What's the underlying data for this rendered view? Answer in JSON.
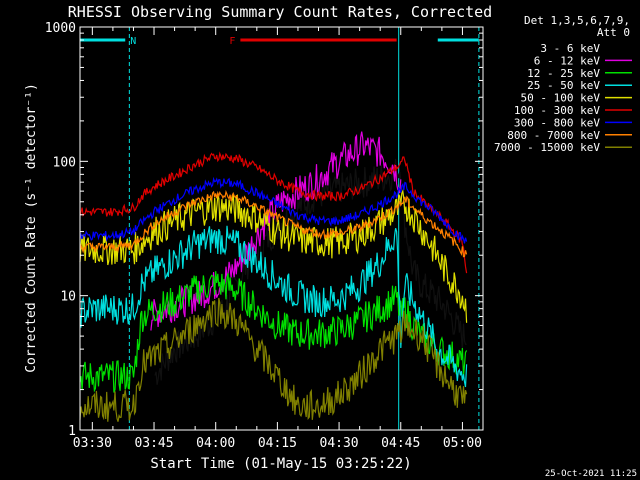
{
  "chart_data": {
    "type": "line",
    "title": "RHESSI Observing Summary Count Rates, Corrected",
    "xlabel": "Start Time (01-May-15 03:25:22)",
    "ylabel": "Corrected Count Rate (s⁻¹ detector⁻¹)",
    "xlim": [
      27,
      125
    ],
    "ylim": [
      1,
      1000
    ],
    "yscale": "log",
    "x_ticks": [
      {
        "value": 30,
        "label": "03:30"
      },
      {
        "value": 45,
        "label": "03:45"
      },
      {
        "value": 60,
        "label": "04:00"
      },
      {
        "value": 75,
        "label": "04:15"
      },
      {
        "value": 90,
        "label": "04:30"
      },
      {
        "value": 105,
        "label": "04:45"
      },
      {
        "value": 120,
        "label": "05:00"
      }
    ],
    "y_ticks": [
      {
        "value": 1,
        "label": "1"
      },
      {
        "value": 10,
        "label": "10"
      },
      {
        "value": 100,
        "label": "100"
      },
      {
        "value": 1000,
        "label": "1000"
      }
    ],
    "legend_header": [
      "Det 1,3,5,6,7,9,",
      "Att 0"
    ],
    "series": [
      {
        "name": "3 - 6 keV",
        "color": "#000000",
        "x": [
          27,
          40,
          45,
          50,
          55,
          58,
          62,
          65,
          68,
          72,
          76,
          80,
          84,
          88,
          92,
          96,
          100,
          103,
          105,
          106,
          108,
          110,
          113,
          116,
          120,
          121
        ],
        "y": [
          null,
          null,
          2.5,
          4,
          5,
          6,
          8,
          12,
          18,
          25,
          35,
          45,
          55,
          60,
          65,
          70,
          75,
          80,
          90,
          35,
          15,
          12,
          10,
          8,
          5,
          5
        ]
      },
      {
        "name": "6 - 12 keV",
        "color": "#e000e0",
        "x": [
          27,
          40,
          44,
          48,
          52,
          56,
          60,
          64,
          68,
          72,
          76,
          80,
          84,
          88,
          92,
          96,
          100,
          103,
          105,
          106,
          108,
          110,
          114,
          118,
          121
        ],
        "y": [
          null,
          null,
          7,
          8,
          9,
          10,
          12,
          15,
          22,
          35,
          50,
          60,
          70,
          90,
          110,
          130,
          115,
          95,
          70,
          null,
          null,
          null,
          null,
          null,
          null
        ]
      },
      {
        "name": "12 - 25 keV",
        "color": "#00e000",
        "x": [
          27,
          30,
          40,
          42,
          45,
          50,
          55,
          60,
          65,
          70,
          75,
          80,
          85,
          90,
          95,
          100,
          104,
          105,
          106,
          108,
          110,
          114,
          118,
          121
        ],
        "y": [
          2.5,
          2.5,
          2.5,
          7,
          8,
          9,
          11,
          12.5,
          11,
          8,
          6,
          5.2,
          5.2,
          5.5,
          6.5,
          8,
          9.5,
          7,
          8,
          6,
          5,
          4,
          3.5,
          3
        ]
      },
      {
        "name": "25 - 50 keV",
        "color": "#00e0e0",
        "x": [
          27,
          30,
          40,
          42,
          45,
          50,
          55,
          60,
          65,
          70,
          75,
          80,
          85,
          90,
          95,
          100,
          104,
          105,
          106,
          110,
          114,
          118,
          121
        ],
        "y": [
          7.5,
          8,
          8,
          12,
          15,
          19,
          24,
          27,
          24,
          18,
          13,
          10,
          9,
          9.5,
          12,
          18,
          30,
          5,
          12,
          7,
          4,
          3,
          2.5
        ]
      },
      {
        "name": "50 - 100 keV",
        "color": "#e0e000",
        "x": [
          27,
          30,
          35,
          40,
          42,
          45,
          50,
          55,
          60,
          65,
          70,
          75,
          80,
          85,
          90,
          95,
          100,
          105,
          106,
          108,
          112,
          116,
          120,
          121
        ],
        "y": [
          22,
          22,
          22,
          22,
          25,
          30,
          36,
          42,
          46,
          44,
          38,
          30,
          26,
          25,
          25,
          28,
          35,
          45,
          48,
          40,
          25,
          15,
          10,
          8
        ]
      },
      {
        "name": "100 - 300 keV",
        "color": "#e00000",
        "x": [
          27,
          30,
          35,
          40,
          42,
          45,
          50,
          55,
          60,
          65,
          70,
          75,
          80,
          85,
          90,
          95,
          100,
          105,
          106,
          108,
          112,
          116,
          120,
          121
        ],
        "y": [
          42,
          42,
          42,
          45,
          55,
          65,
          78,
          95,
          110,
          105,
          90,
          72,
          60,
          55,
          55,
          62,
          75,
          95,
          105,
          60,
          45,
          35,
          25,
          15
        ]
      },
      {
        "name": "300 - 800 keV",
        "color": "#0000ff",
        "x": [
          27,
          30,
          35,
          40,
          42,
          45,
          50,
          55,
          60,
          65,
          70,
          75,
          80,
          85,
          90,
          95,
          100,
          105,
          106,
          110,
          114,
          118,
          121
        ],
        "y": [
          28,
          28,
          28,
          30,
          35,
          42,
          52,
          62,
          70,
          68,
          58,
          48,
          40,
          36,
          36,
          40,
          48,
          60,
          65,
          50,
          40,
          30,
          25
        ]
      },
      {
        "name": "800 - 7000 keV",
        "color": "#ff8000",
        "x": [
          27,
          30,
          35,
          40,
          42,
          45,
          50,
          55,
          60,
          65,
          70,
          75,
          80,
          85,
          90,
          95,
          100,
          105,
          106,
          110,
          114,
          118,
          121
        ],
        "y": [
          23,
          23,
          23,
          24,
          28,
          34,
          42,
          50,
          56,
          54,
          46,
          38,
          32,
          29,
          29,
          32,
          38,
          48,
          52,
          40,
          32,
          25,
          20
        ]
      },
      {
        "name": "7000 - 15000 keV",
        "color": "#808000",
        "x": [
          27,
          30,
          40,
          42,
          45,
          50,
          55,
          60,
          65,
          70,
          75,
          80,
          85,
          90,
          95,
          100,
          104,
          105,
          106,
          110,
          114,
          118,
          121
        ],
        "y": [
          1.5,
          1.5,
          1.5,
          3,
          3.5,
          4.5,
          6,
          8,
          6.5,
          4,
          2.5,
          1.5,
          1.5,
          1.8,
          2.5,
          4,
          5,
          5.5,
          6,
          5,
          3,
          2,
          1.5
        ]
      }
    ],
    "flags": [
      {
        "name": "N",
        "label": "N",
        "color": "#00e0e0",
        "segments": [
          [
            27,
            38
          ],
          [
            114,
            124
          ]
        ],
        "level": 800
      },
      {
        "name": "F",
        "label": "F",
        "color": "#e00000",
        "segments": [
          [
            66,
            104
          ]
        ],
        "level": 800
      }
    ],
    "boundaries": [
      {
        "x": 27,
        "style": "solid",
        "color": "#00e0e0"
      },
      {
        "x": 39,
        "style": "dashed",
        "color": "#00e0e0"
      },
      {
        "x": 104.5,
        "style": "solid",
        "color": "#00e0e0"
      },
      {
        "x": 124,
        "style": "dashed",
        "color": "#00e0e0"
      }
    ],
    "footer": "25-Oct-2021 11:25"
  }
}
